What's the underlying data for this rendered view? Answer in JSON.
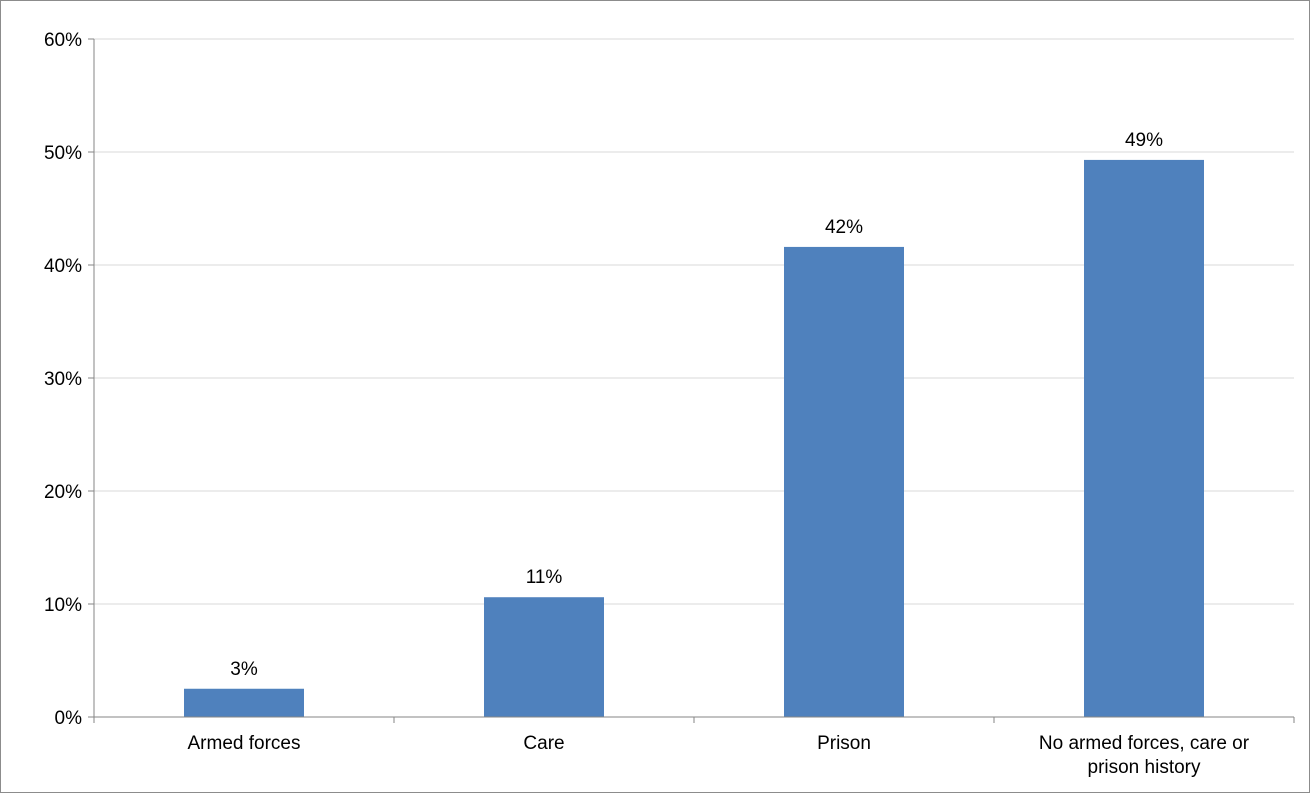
{
  "chart_data": {
    "type": "bar",
    "categories": [
      [
        "Armed forces"
      ],
      [
        "Care"
      ],
      [
        "Prison"
      ],
      [
        "No armed forces, care or",
        "prison history"
      ]
    ],
    "values": [
      2.5,
      10.6,
      41.6,
      49.3
    ],
    "data_labels": [
      "3%",
      "11%",
      "42%",
      "49%"
    ],
    "y_ticks": [
      0,
      10,
      20,
      30,
      40,
      50,
      60
    ],
    "y_tick_labels": [
      "0%",
      "10%",
      "20%",
      "30%",
      "40%",
      "50%",
      "60%"
    ],
    "ylim": [
      0,
      60
    ],
    "grid": true,
    "legend": "none",
    "title": "",
    "xlabel": "",
    "ylabel": "",
    "bar_color": "#4F81BD",
    "grid_color": "#D9D9D9",
    "axis_color": "#868686"
  }
}
